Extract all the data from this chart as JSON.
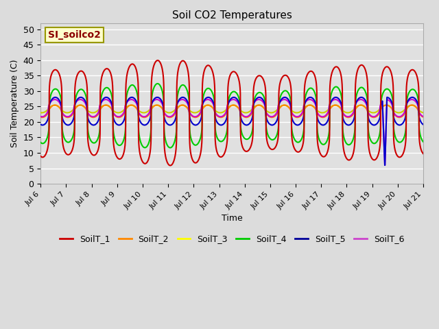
{
  "title": "Soil CO2 Temperatures",
  "xlabel": "Time",
  "ylabel": "Soil Temperature (C)",
  "ylim": [
    0,
    52
  ],
  "annotation_text": "SI_soilco2",
  "series_labels": [
    "SoilT_1",
    "SoilT_2",
    "SoilT_3",
    "SoilT_4",
    "SoilT_5",
    "SoilT_6"
  ],
  "series_colors": [
    "#cc0000",
    "#ff8800",
    "#cccc00",
    "#00cc00",
    "#0000cc",
    "#cc00cc"
  ],
  "legend_colors": [
    "#cc0000",
    "#ff8800",
    "#ffff00",
    "#00cc00",
    "#000099",
    "#cc44cc"
  ],
  "x_start_day": 6,
  "x_end_day": 21,
  "x_tick_days": [
    6,
    7,
    8,
    9,
    10,
    11,
    12,
    13,
    14,
    15,
    16,
    17,
    18,
    19,
    20,
    21
  ],
  "x_tick_labels": [
    "Jul 6",
    "Jul 7",
    "Jul 8",
    "Jul 9",
    "Jul 10",
    "Jul 11",
    "Jul 12",
    "Jul 13",
    "Jul 14",
    "Jul 15",
    "Jul 16",
    "Jul 17",
    "Jul 18",
    "Jul 19",
    "Jul 20",
    "Jul 21"
  ],
  "y_ticks": [
    0,
    5,
    10,
    15,
    20,
    25,
    30,
    35,
    40,
    45,
    50
  ],
  "drop_sensors": [
    4,
    5
  ],
  "drop_day_from_start": 13.4,
  "figsize": [
    6.4,
    4.8
  ],
  "dpi": 100
}
